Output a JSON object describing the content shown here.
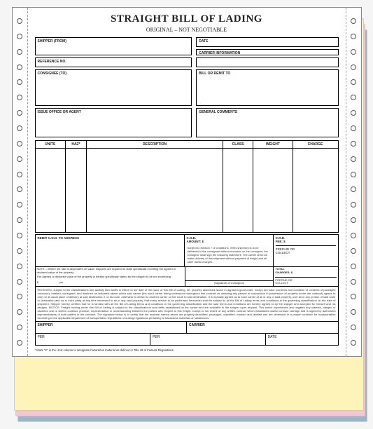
{
  "title": "STRAIGHT BILL OF LADING",
  "subtitle": "ORIGINAL – NOT NEGOTIABLE",
  "labels": {
    "shipper": "SHIPPER (FROM)",
    "date": "DATE",
    "carrier": "CARRIER INFORMATION",
    "reference": "REFERENCE NO.",
    "consignee": "CONSIGNEE (TO)",
    "bill_remit": "BILL OR REMIT TO",
    "issue_office": "ISSUE OFFICE OR AGENT",
    "general_comments": "GENERAL COMMENTS"
  },
  "columns": {
    "units": "UNITS",
    "haz": "HAZ*",
    "description": "DESCRIPTION",
    "class": "CLASS",
    "weight": "WEIGHT",
    "charge": "CHARGE"
  },
  "col_widths": {
    "units": "10%",
    "haz": "7%",
    "description": "45%",
    "class": "10%",
    "weight": "13%",
    "charge": "15%"
  },
  "bottom": {
    "remit_cod": "REMIT C.O.D. TO ADDRESS",
    "cod_amount": "C.O.D.\nAMOUNT: $",
    "cod_fee": "C.O.D.\nFEE: $",
    "prepaid_collect": "PREPAID OR\nCOLLECT",
    "total_charges": "TOTAL\nCHARGES: $",
    "cod_note": "Subject to Section 7 of conditions, if this shipment is to be delivered to the consignee without recourse on the consignor, the consignor shall sign the following statement: The carrier shall not make delivery of this shipment without payment of freight and all other lawful charges.",
    "sig_consignor": "(Signature of Consignor)"
  },
  "notes": {
    "note_line": "NOTE – Where the rate is dependent on value, shippers are required to state specifically in writing the agreed or declared value of the property.",
    "agreed_line": "The Agreed or declared value of the property is hereby specifically stated by the shipper to be not exceeding",
    "dollar": "$",
    "per": "per"
  },
  "received_text": "RECEIVED, subject to the classifications and lawfully filed tariffs in effect on the date of the issue of this Bill of Lading, the property described above in apparent good order, except as noted (contents and condition of contents of packages unknown), marked, consigned, and destined as indicated above which said carrier (the word carrier being understood throughout this contract as meaning any person or corporation in possession of property under the contract) agrees to carry to its usual place of delivery at said destination, if on its route, otherwise to deliver to another carrier on the route to said destination. It is mutually agreed as to each carrier of all or any of said property, over all or any portion of said route to destination and as to each party at any time interested in all or any said property, that every service to be performed hereunder shall be subject to all the Bill of Lading terms and conditions in the governing classification on the date of shipment. Shipper hereby certifies that he is familiar with all the Bill of Lading terms and conditions in the governing classification and the said terms and conditions are hereby agreed to by the shipper and accepted for himself and his assigns. NOTICE: Freight moving under this Bill of Lading is subject to the classifications and tariffs established by the carrier and are available to the shipper upon request. This notice supersedes and negates any claimed, alleged or asserted oral or written contract, promise, representation or understanding between the parties with respect to this freight, except to the extent of any written contract which establishes lawful contract carriage and is signed by authorized representatives of both parties to the contract. The signature below is to certify that the material named above are properly described, packaged, classified, marked and labeled and are otherwise in a proper condition for transportation according to the applicable department of transportation regulations, including regulations pertaining to hazardous materials or substances.",
  "sig": {
    "shipper": "SHIPPER",
    "carrier": "CARRIER",
    "per": "PER",
    "date": "DATE"
  },
  "haz_footer": "* Mark \"X\" in the HAZ column to designate hazardous material as defined in Title 49 of Federal Regulations.",
  "style": {
    "hole_count": 22,
    "layer_colors": {
      "blue": "#9db5c4",
      "pink": "#f4c6d4",
      "yellow": "#fef3b8"
    }
  }
}
